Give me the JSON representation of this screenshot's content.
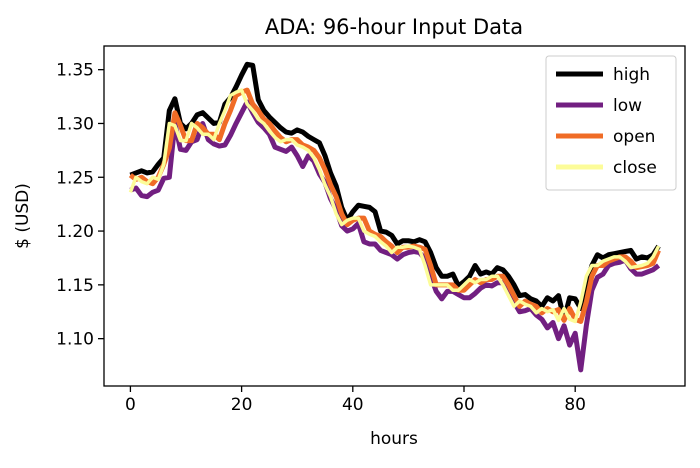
{
  "chart_data": {
    "type": "line",
    "title": "ADA: 96-hour Input Data",
    "xlabel": "hours",
    "ylabel": "$ (USD)",
    "xlim": [
      -4.75,
      99.75
    ],
    "ylim": [
      1.056,
      1.372
    ],
    "xticks": [
      0,
      20,
      40,
      60,
      80
    ],
    "yticks": [
      1.1,
      1.15,
      1.2,
      1.25,
      1.3,
      1.35
    ],
    "ytick_labels": [
      "1.10",
      "1.15",
      "1.20",
      "1.25",
      "1.30",
      "1.35"
    ],
    "legend_position": "upper right",
    "series": [
      {
        "name": "high",
        "color": "#000000",
        "values": [
          1.252,
          1.254,
          1.256,
          1.254,
          1.255,
          1.262,
          1.268,
          1.312,
          1.323,
          1.3,
          1.295,
          1.3,
          1.308,
          1.31,
          1.305,
          1.3,
          1.301,
          1.318,
          1.324,
          1.334,
          1.345,
          1.355,
          1.354,
          1.322,
          1.312,
          1.306,
          1.301,
          1.296,
          1.292,
          1.291,
          1.294,
          1.292,
          1.288,
          1.285,
          1.282,
          1.27,
          1.254,
          1.242,
          1.222,
          1.21,
          1.218,
          1.224,
          1.223,
          1.222,
          1.218,
          1.2,
          1.199,
          1.196,
          1.188,
          1.191,
          1.191,
          1.19,
          1.192,
          1.19,
          1.18,
          1.166,
          1.158,
          1.158,
          1.16,
          1.149,
          1.153,
          1.158,
          1.168,
          1.16,
          1.162,
          1.16,
          1.166,
          1.164,
          1.158,
          1.15,
          1.14,
          1.141,
          1.137,
          1.135,
          1.13,
          1.138,
          1.135,
          1.14,
          1.118,
          1.138,
          1.137,
          1.128,
          1.148,
          1.168,
          1.178,
          1.175,
          1.178,
          1.179,
          1.18,
          1.181,
          1.182,
          1.174,
          1.176,
          1.175,
          1.178,
          1.186
        ]
      },
      {
        "name": "low",
        "color": "#721f81",
        "values": [
          1.238,
          1.24,
          1.233,
          1.232,
          1.236,
          1.238,
          1.249,
          1.25,
          1.3,
          1.276,
          1.275,
          1.283,
          1.285,
          1.3,
          1.285,
          1.281,
          1.279,
          1.28,
          1.289,
          1.3,
          1.31,
          1.32,
          1.31,
          1.301,
          1.296,
          1.29,
          1.278,
          1.276,
          1.274,
          1.278,
          1.27,
          1.26,
          1.27,
          1.265,
          1.253,
          1.245,
          1.23,
          1.22,
          1.205,
          1.2,
          1.202,
          1.207,
          1.19,
          1.188,
          1.188,
          1.182,
          1.18,
          1.178,
          1.174,
          1.178,
          1.18,
          1.181,
          1.18,
          1.174,
          1.158,
          1.144,
          1.137,
          1.144,
          1.144,
          1.141,
          1.138,
          1.138,
          1.142,
          1.147,
          1.15,
          1.149,
          1.152,
          1.152,
          1.146,
          1.134,
          1.125,
          1.126,
          1.128,
          1.122,
          1.118,
          1.11,
          1.115,
          1.1,
          1.112,
          1.094,
          1.105,
          1.071,
          1.112,
          1.145,
          1.157,
          1.16,
          1.168,
          1.17,
          1.171,
          1.173,
          1.165,
          1.16,
          1.16,
          1.162,
          1.164,
          1.168
        ]
      },
      {
        "name": "open",
        "color": "#f06c26",
        "values": [
          1.252,
          1.248,
          1.25,
          1.246,
          1.244,
          1.25,
          1.262,
          1.277,
          1.31,
          1.298,
          1.284,
          1.284,
          1.3,
          1.296,
          1.29,
          1.29,
          1.285,
          1.3,
          1.312,
          1.326,
          1.329,
          1.331,
          1.318,
          1.312,
          1.304,
          1.3,
          1.293,
          1.287,
          1.283,
          1.285,
          1.285,
          1.28,
          1.278,
          1.275,
          1.268,
          1.257,
          1.243,
          1.232,
          1.216,
          1.206,
          1.21,
          1.212,
          1.212,
          1.2,
          1.197,
          1.195,
          1.19,
          1.186,
          1.18,
          1.185,
          1.185,
          1.186,
          1.185,
          1.183,
          1.168,
          1.15,
          1.15,
          1.15,
          1.15,
          1.145,
          1.145,
          1.15,
          1.155,
          1.152,
          1.155,
          1.155,
          1.158,
          1.158,
          1.15,
          1.14,
          1.13,
          1.135,
          1.132,
          1.13,
          1.124,
          1.128,
          1.125,
          1.127,
          1.117,
          1.128,
          1.118,
          1.116,
          1.134,
          1.158,
          1.168,
          1.168,
          1.172,
          1.174,
          1.176,
          1.176,
          1.172,
          1.166,
          1.167,
          1.168,
          1.17,
          1.182
        ]
      },
      {
        "name": "close",
        "color": "#fcfc99",
        "values": [
          1.236,
          1.25,
          1.246,
          1.244,
          1.25,
          1.248,
          1.262,
          1.3,
          1.298,
          1.284,
          1.284,
          1.3,
          1.296,
          1.29,
          1.29,
          1.285,
          1.3,
          1.312,
          1.326,
          1.329,
          1.331,
          1.318,
          1.312,
          1.304,
          1.3,
          1.293,
          1.287,
          1.283,
          1.285,
          1.285,
          1.28,
          1.278,
          1.275,
          1.268,
          1.257,
          1.243,
          1.232,
          1.216,
          1.206,
          1.21,
          1.212,
          1.212,
          1.2,
          1.197,
          1.195,
          1.19,
          1.186,
          1.18,
          1.185,
          1.185,
          1.186,
          1.185,
          1.183,
          1.168,
          1.15,
          1.15,
          1.15,
          1.15,
          1.145,
          1.145,
          1.15,
          1.155,
          1.152,
          1.155,
          1.155,
          1.158,
          1.158,
          1.15,
          1.14,
          1.13,
          1.135,
          1.132,
          1.13,
          1.124,
          1.128,
          1.125,
          1.127,
          1.117,
          1.128,
          1.118,
          1.116,
          1.134,
          1.158,
          1.168,
          1.168,
          1.172,
          1.174,
          1.176,
          1.176,
          1.172,
          1.166,
          1.167,
          1.168,
          1.17,
          1.176,
          1.186
        ]
      }
    ]
  }
}
